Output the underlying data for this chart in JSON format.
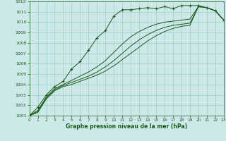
{
  "title": "Graphe pression niveau de la mer (hPa)",
  "bg_color": "#cce8e8",
  "grid_color": "#99cccc",
  "line_color": "#1a5c1a",
  "xlim": [
    0,
    23
  ],
  "ylim": [
    1001,
    1012
  ],
  "xticks": [
    0,
    1,
    2,
    3,
    4,
    5,
    6,
    7,
    8,
    9,
    10,
    11,
    12,
    13,
    14,
    15,
    16,
    17,
    18,
    19,
    20,
    21,
    22,
    23
  ],
  "yticks": [
    1001,
    1002,
    1003,
    1004,
    1005,
    1006,
    1007,
    1008,
    1009,
    1010,
    1011,
    1012
  ],
  "line1_x": [
    0,
    1,
    2,
    3,
    4,
    5,
    6,
    7,
    8,
    9,
    10,
    11,
    12,
    13,
    14,
    15,
    16,
    17,
    18,
    19,
    20,
    21,
    22,
    23
  ],
  "line1_y": [
    1001.0,
    1001.8,
    1003.0,
    1003.8,
    1004.3,
    1005.5,
    1006.2,
    1007.3,
    1008.5,
    1009.2,
    1010.6,
    1011.2,
    1011.2,
    1011.3,
    1011.4,
    1011.3,
    1011.5,
    1011.3,
    1011.6,
    1011.6,
    1011.6,
    1011.4,
    1011.1,
    1010.2
  ],
  "line2_x": [
    0,
    1,
    2,
    3,
    4,
    5,
    6,
    7,
    8,
    9,
    10,
    11,
    12,
    13,
    14,
    15,
    16,
    17,
    18,
    19,
    20,
    21,
    22,
    23
  ],
  "line2_y": [
    1001.0,
    1001.5,
    1002.8,
    1003.6,
    1004.0,
    1004.4,
    1004.8,
    1005.2,
    1005.7,
    1006.3,
    1007.1,
    1007.9,
    1008.6,
    1009.1,
    1009.5,
    1009.8,
    1010.0,
    1010.1,
    1010.2,
    1010.3,
    1011.5,
    1011.4,
    1011.1,
    1010.2
  ],
  "line3_x": [
    0,
    1,
    2,
    3,
    4,
    5,
    6,
    7,
    8,
    9,
    10,
    11,
    12,
    13,
    14,
    15,
    16,
    17,
    18,
    19,
    20,
    21,
    22,
    23
  ],
  "line3_y": [
    1001.0,
    1001.4,
    1002.7,
    1003.5,
    1003.9,
    1004.2,
    1004.5,
    1004.8,
    1005.2,
    1005.7,
    1006.3,
    1007.0,
    1007.7,
    1008.3,
    1008.8,
    1009.2,
    1009.5,
    1009.7,
    1009.8,
    1009.9,
    1011.5,
    1011.4,
    1011.1,
    1010.2
  ],
  "line4_x": [
    0,
    1,
    2,
    3,
    4,
    5,
    6,
    7,
    8,
    9,
    10,
    11,
    12,
    13,
    14,
    15,
    16,
    17,
    18,
    19,
    20,
    21,
    22,
    23
  ],
  "line4_y": [
    1001.0,
    1001.3,
    1002.6,
    1003.4,
    1003.8,
    1004.0,
    1004.3,
    1004.6,
    1004.9,
    1005.3,
    1005.8,
    1006.4,
    1007.0,
    1007.6,
    1008.2,
    1008.7,
    1009.1,
    1009.4,
    1009.6,
    1009.7,
    1011.5,
    1011.4,
    1011.1,
    1010.2
  ]
}
